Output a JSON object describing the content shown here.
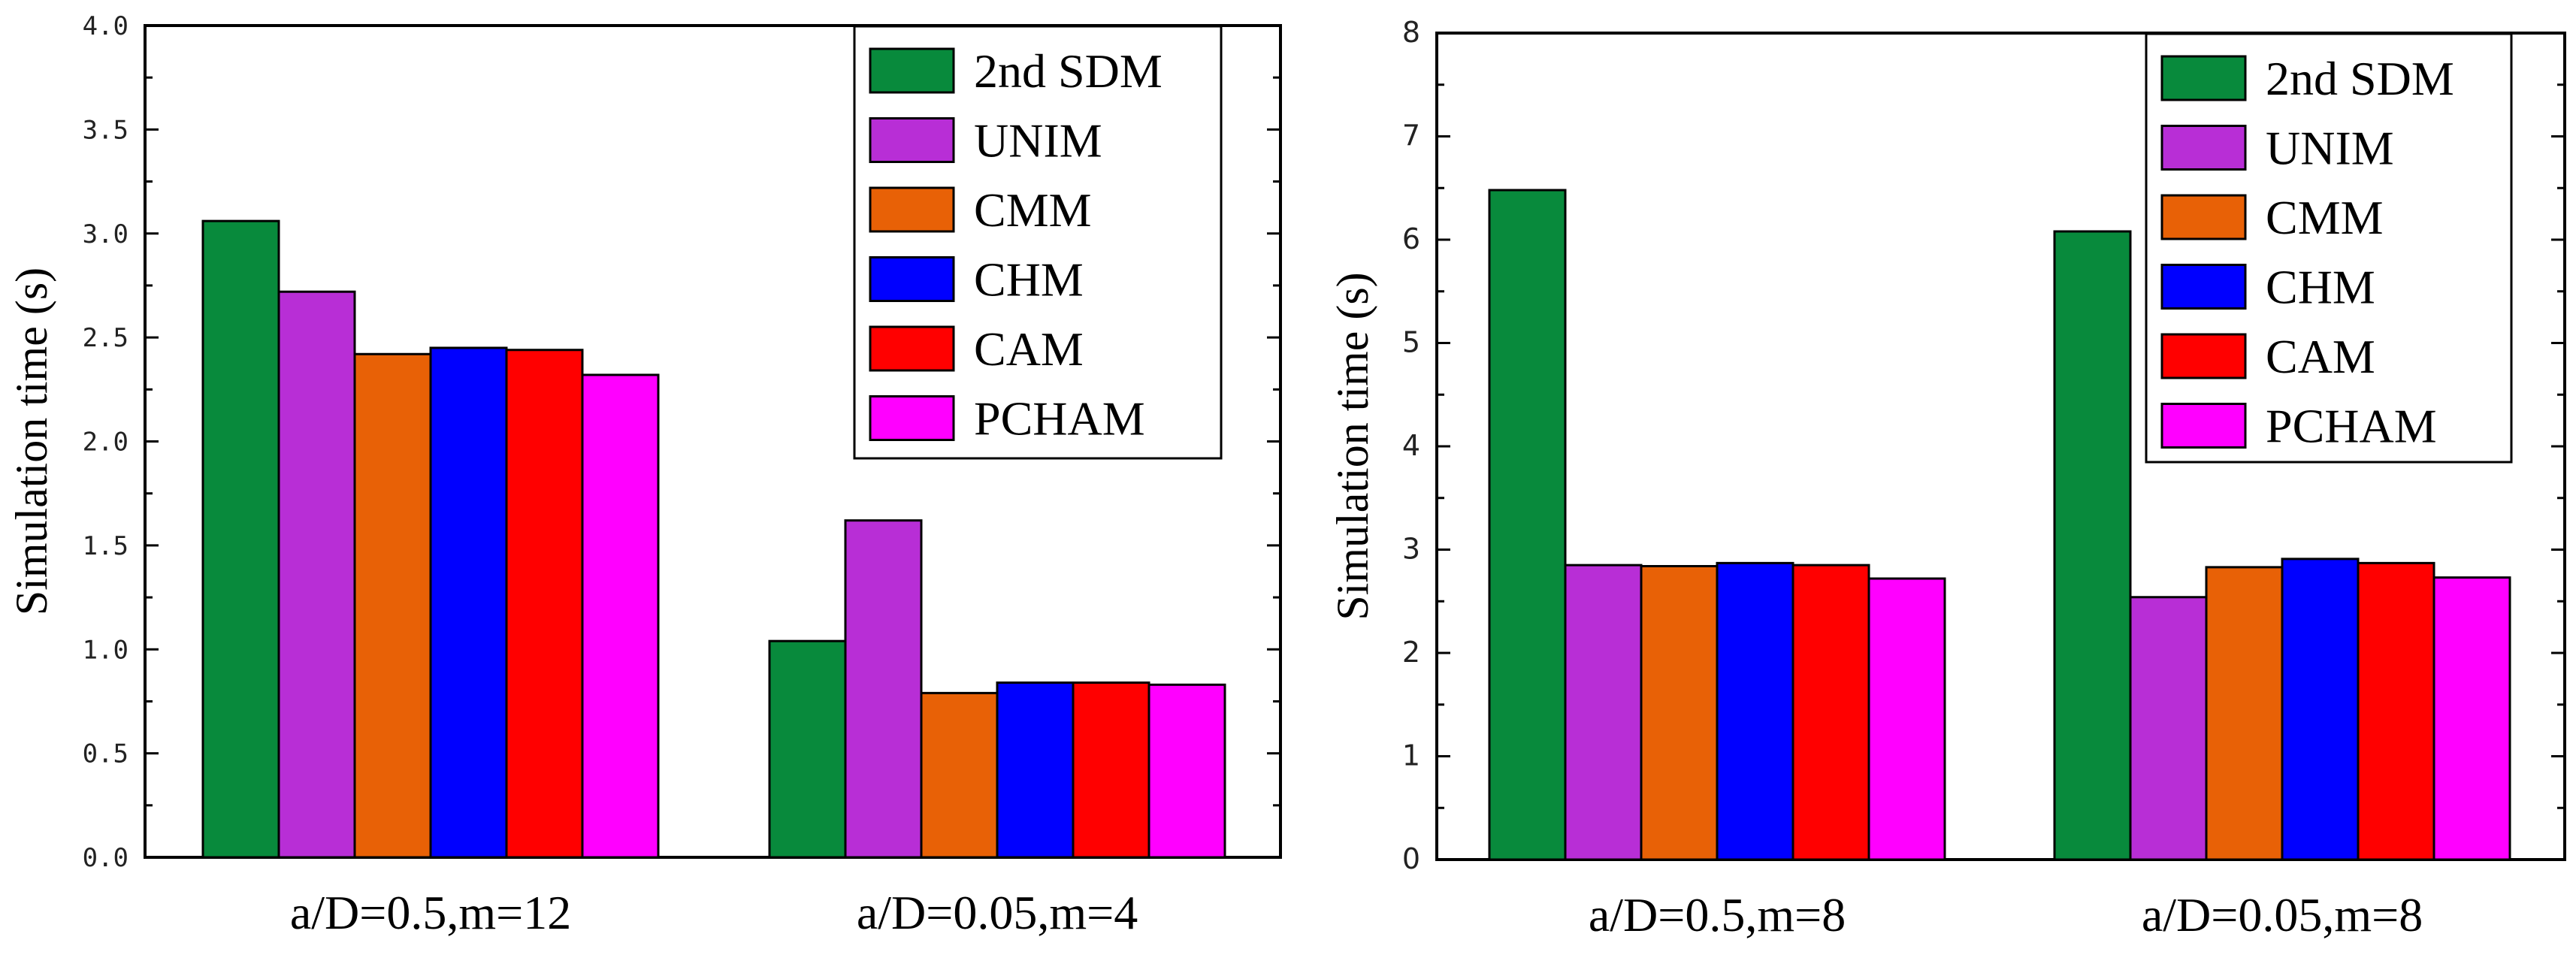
{
  "chart_data": [
    {
      "type": "bar",
      "ylabel": "Simulation time (s)",
      "ylim": [
        0,
        4.0
      ],
      "yticks": [
        "0.0",
        "0.5",
        "1.0",
        "1.5",
        "2.0",
        "2.5",
        "3.0",
        "3.5",
        "4.0"
      ],
      "categories": [
        "a/D=0.5,m=12",
        "a/D=0.05,m=4"
      ],
      "legend_placement": "top-right",
      "series": [
        {
          "name": "2nd SDM",
          "color": "#088a3c",
          "values": [
            3.06,
            1.04
          ]
        },
        {
          "name": "UNIM",
          "color": "#b82ed6",
          "values": [
            2.72,
            1.62
          ]
        },
        {
          "name": "CMM",
          "color": "#e86106",
          "values": [
            2.42,
            0.79
          ]
        },
        {
          "name": "CHM",
          "color": "#0000ff",
          "values": [
            2.45,
            0.84
          ]
        },
        {
          "name": "CAM",
          "color": "#ff0000",
          "values": [
            2.44,
            0.84
          ]
        },
        {
          "name": "PCHAM",
          "color": "#ff00ff",
          "values": [
            2.32,
            0.83
          ]
        }
      ]
    },
    {
      "type": "bar",
      "ylabel": "Simulation time (s)",
      "ylim": [
        0,
        8
      ],
      "yticks": [
        "0",
        "1",
        "2",
        "3",
        "4",
        "5",
        "6",
        "7",
        "8"
      ],
      "categories": [
        "a/D=0.5,m=8",
        "a/D=0.05,m=8"
      ],
      "legend_placement": "top-right",
      "series": [
        {
          "name": "2nd SDM",
          "color": "#088a3c",
          "values": [
            6.48,
            6.08
          ]
        },
        {
          "name": "UNIM",
          "color": "#b82ed6",
          "values": [
            2.85,
            2.54
          ]
        },
        {
          "name": "CMM",
          "color": "#e86106",
          "values": [
            2.84,
            2.83
          ]
        },
        {
          "name": "CHM",
          "color": "#0000ff",
          "values": [
            2.87,
            2.91
          ]
        },
        {
          "name": "CAM",
          "color": "#ff0000",
          "values": [
            2.85,
            2.87
          ]
        },
        {
          "name": "PCHAM",
          "color": "#ff00ff",
          "values": [
            2.72,
            2.73
          ]
        }
      ]
    }
  ]
}
